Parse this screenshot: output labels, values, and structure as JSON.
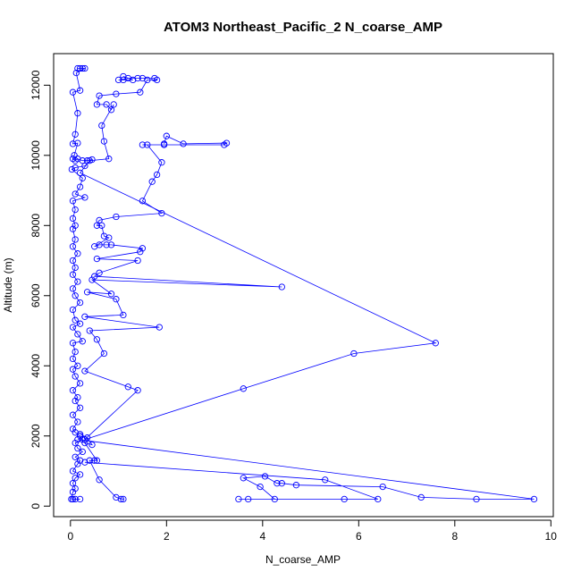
{
  "chart_data": {
    "type": "line",
    "title": "ATOM3 Northeast_Pacific_2 N_coarse_AMP",
    "xlabel": "N_coarse_AMP",
    "ylabel": "Altitude (m)",
    "xlim": [
      -0.35,
      10.05
    ],
    "ylim": [
      -300,
      12900
    ],
    "x_ticks": [
      0,
      2,
      4,
      6,
      8,
      10
    ],
    "y_ticks": [
      0,
      2000,
      4000,
      6000,
      8000,
      10000,
      12000
    ],
    "grid": false,
    "series_color": "#0000ff",
    "marker": "open-circle",
    "series": [
      {
        "values": [
          [
            0.15,
            12480
          ],
          [
            0.2,
            12480
          ],
          [
            0.25,
            12480
          ],
          [
            0.3,
            12480
          ],
          [
            0.12,
            12350
          ],
          [
            0.2,
            11850
          ],
          [
            0.05,
            11800
          ],
          [
            0.15,
            11200
          ],
          [
            0.1,
            10600
          ],
          [
            0.05,
            10330
          ],
          [
            0.15,
            10350
          ],
          [
            0.08,
            10000
          ],
          [
            0.05,
            9900
          ],
          [
            0.1,
            9850
          ],
          [
            0.15,
            9900
          ],
          [
            0.25,
            9850
          ],
          [
            0.35,
            9850
          ],
          [
            0.45,
            9880
          ],
          [
            0.3,
            9700
          ],
          [
            0.1,
            9650
          ],
          [
            0.03,
            9600
          ],
          [
            0.25,
            9350
          ],
          [
            0.2,
            9100
          ],
          [
            0.1,
            8900
          ],
          [
            0.3,
            8800
          ],
          [
            0.05,
            8700
          ],
          [
            0.1,
            8450
          ],
          [
            0.05,
            8200
          ],
          [
            0.1,
            8000
          ],
          [
            0.05,
            7900
          ],
          [
            0.1,
            7600
          ],
          [
            0.05,
            7400
          ],
          [
            0.15,
            7200
          ],
          [
            0.05,
            7000
          ],
          [
            0.1,
            6800
          ],
          [
            0.05,
            6600
          ],
          [
            0.15,
            6400
          ],
          [
            0.05,
            6200
          ],
          [
            0.1,
            6000
          ],
          [
            0.2,
            5800
          ],
          [
            0.05,
            5600
          ],
          [
            0.1,
            5300
          ],
          [
            0.2,
            5200
          ],
          [
            0.05,
            5100
          ],
          [
            0.15,
            4900
          ],
          [
            0.25,
            4700
          ],
          [
            0.05,
            4650
          ],
          [
            0.1,
            4400
          ],
          [
            0.05,
            4200
          ],
          [
            0.15,
            4000
          ],
          [
            0.05,
            3900
          ],
          [
            0.1,
            3700
          ],
          [
            0.2,
            3500
          ],
          [
            0.05,
            3300
          ],
          [
            0.15,
            3100
          ],
          [
            0.1,
            3000
          ],
          [
            0.2,
            2800
          ],
          [
            0.05,
            2600
          ],
          [
            0.15,
            2400
          ],
          [
            0.05,
            2200
          ],
          [
            0.1,
            2100
          ],
          [
            0.2,
            2000
          ],
          [
            0.25,
            1900
          ],
          [
            0.1,
            1800
          ],
          [
            0.15,
            1650
          ],
          [
            0.25,
            1550
          ],
          [
            0.1,
            1400
          ],
          [
            0.2,
            1300
          ],
          [
            0.15,
            1200
          ],
          [
            0.05,
            1000
          ],
          [
            0.2,
            900
          ],
          [
            0.1,
            800
          ],
          [
            0.05,
            650
          ],
          [
            0.1,
            500
          ],
          [
            0.05,
            400
          ],
          [
            0.02,
            200
          ],
          [
            0.05,
            200
          ],
          [
            0.1,
            200
          ],
          [
            0.2,
            200
          ]
        ]
      },
      {
        "values": [
          [
            1.05,
            200
          ],
          [
            1.1,
            200
          ],
          [
            0.95,
            250
          ],
          [
            0.6,
            750
          ],
          [
            0.4,
            1300
          ],
          [
            0.5,
            1300
          ],
          [
            0.55,
            1300
          ],
          [
            0.3,
            1800
          ],
          [
            0.45,
            1750
          ],
          [
            0.35,
            1950
          ],
          [
            0.2,
            2050
          ]
        ]
      },
      {
        "values": [
          [
            0.3,
            1900
          ],
          [
            1.4,
            3300
          ],
          [
            1.2,
            3400
          ],
          [
            0.3,
            3850
          ],
          [
            0.7,
            4350
          ],
          [
            0.55,
            4750
          ],
          [
            0.4,
            5000
          ],
          [
            1.85,
            5100
          ],
          [
            0.3,
            5400
          ],
          [
            1.1,
            5450
          ],
          [
            0.95,
            5900
          ],
          [
            0.35,
            6100
          ],
          [
            0.85,
            6050
          ],
          [
            0.45,
            6450
          ],
          [
            4.4,
            6250
          ],
          [
            0.5,
            6550
          ],
          [
            0.6,
            6650
          ],
          [
            1.4,
            7000
          ],
          [
            0.55,
            7050
          ],
          [
            1.45,
            7250
          ],
          [
            1.5,
            7350
          ],
          [
            0.85,
            7450
          ],
          [
            0.75,
            7450
          ],
          [
            0.6,
            7450
          ],
          [
            0.5,
            7400
          ],
          [
            0.8,
            7650
          ],
          [
            0.7,
            7700
          ],
          [
            0.65,
            8000
          ],
          [
            0.55,
            8000
          ],
          [
            0.6,
            8150
          ],
          [
            0.95,
            8250
          ],
          [
            1.9,
            8350
          ],
          [
            1.5,
            8700
          ],
          [
            1.7,
            9250
          ],
          [
            1.8,
            9450
          ],
          [
            1.9,
            9800
          ],
          [
            1.6,
            10300
          ],
          [
            1.5,
            10300
          ],
          [
            1.95,
            10300
          ],
          [
            3.2,
            10300
          ],
          [
            3.25,
            10350
          ],
          [
            2.35,
            10330
          ],
          [
            2.0,
            10550
          ],
          [
            1.95,
            10330
          ]
        ]
      },
      {
        "values": [
          [
            0.3,
            1900
          ],
          [
            3.6,
            3350
          ],
          [
            5.9,
            4350
          ],
          [
            7.6,
            4650
          ],
          [
            0.2,
            9500
          ],
          [
            0.4,
            9850
          ],
          [
            0.8,
            9900
          ],
          [
            0.7,
            10400
          ],
          [
            0.65,
            10850
          ],
          [
            0.9,
            11450
          ],
          [
            0.85,
            11300
          ],
          [
            0.75,
            11450
          ],
          [
            0.55,
            11450
          ],
          [
            0.6,
            11700
          ],
          [
            0.95,
            11750
          ],
          [
            1.45,
            11800
          ],
          [
            1.6,
            12150
          ],
          [
            1.8,
            12150
          ],
          [
            1.75,
            12200
          ],
          [
            1.5,
            12200
          ],
          [
            1.4,
            12200
          ],
          [
            1.2,
            12200
          ],
          [
            1.1,
            12150
          ],
          [
            1.0,
            12150
          ],
          [
            1.3,
            12150
          ],
          [
            1.1,
            12250
          ]
        ]
      },
      {
        "values": [
          [
            0.15,
            1900
          ],
          [
            9.65,
            200
          ],
          [
            8.45,
            200
          ],
          [
            7.3,
            250
          ],
          [
            6.5,
            550
          ],
          [
            4.7,
            600
          ],
          [
            4.4,
            650
          ],
          [
            4.3,
            650
          ],
          [
            4.05,
            850
          ],
          [
            3.6,
            800
          ],
          [
            3.95,
            550
          ],
          [
            4.25,
            200
          ],
          [
            3.7,
            200
          ],
          [
            3.5,
            200
          ],
          [
            5.7,
            200
          ],
          [
            6.4,
            200
          ],
          [
            5.3,
            750
          ],
          [
            0.3,
            1250
          ]
        ]
      }
    ]
  }
}
